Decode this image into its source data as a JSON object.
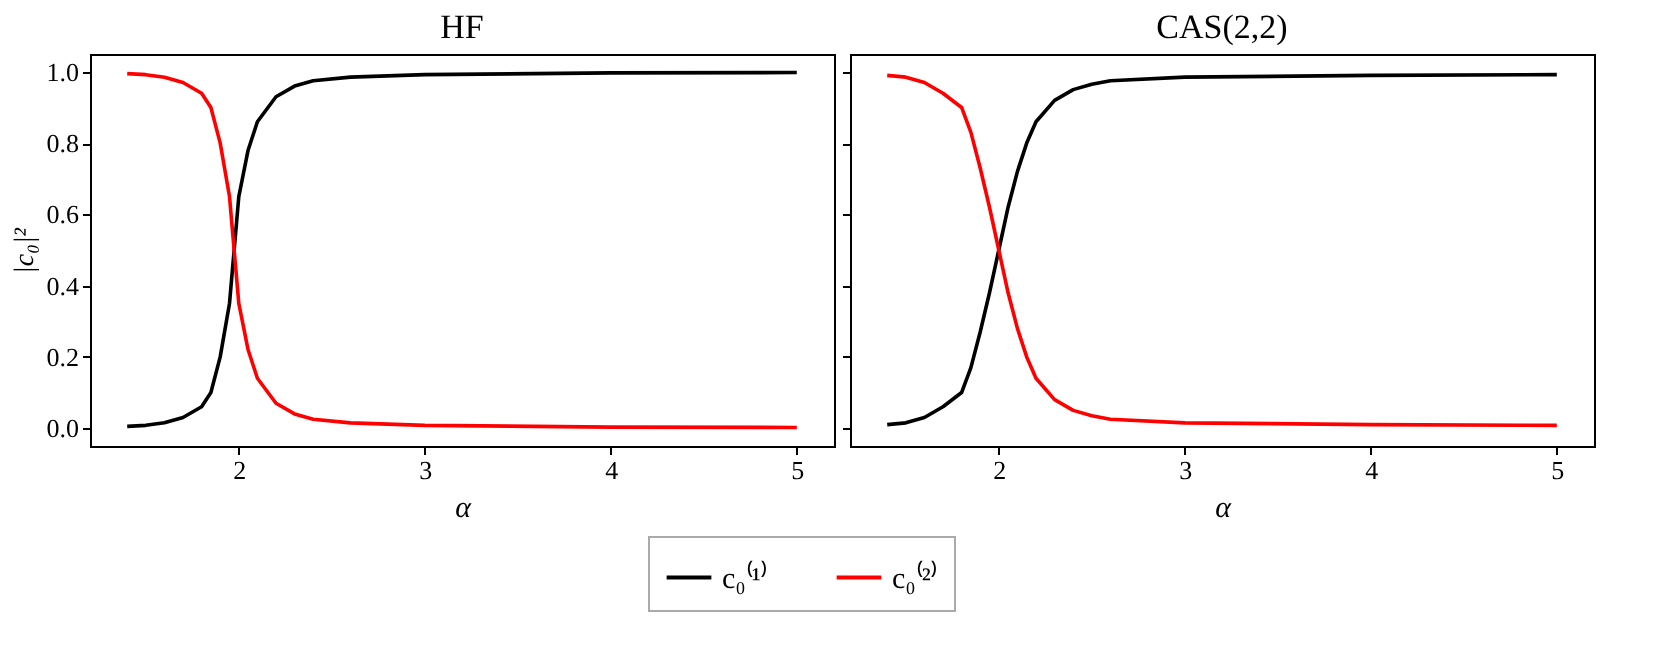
{
  "chart_data": [
    {
      "type": "line",
      "title": "HF",
      "xlabel": "α",
      "ylabel": "|c₀|²",
      "legend": "bottom",
      "grid": false,
      "xlim": [
        1.2,
        5.2
      ],
      "xticks": [
        2,
        3,
        4,
        5
      ],
      "ylim": [
        -0.05,
        1.05
      ],
      "yticks": [
        {
          "value": 0,
          "label": "0.0"
        },
        {
          "value": 0.2,
          "label": "0.2"
        },
        {
          "value": 0.4,
          "label": "0.4"
        },
        {
          "value": 0.6,
          "label": "0.6"
        },
        {
          "value": 0.8,
          "label": "0.8"
        },
        {
          "value": 1,
          "label": "1.0"
        }
      ],
      "x": [
        1.4,
        1.5,
        1.6,
        1.7,
        1.8,
        1.85,
        1.9,
        1.95,
        2.0,
        2.05,
        2.1,
        2.2,
        2.3,
        2.4,
        2.6,
        3.0,
        4.0,
        5.0
      ],
      "series": [
        {
          "name": "c₀⁽¹⁾",
          "color": "#000000",
          "values": [
            0.005,
            0.008,
            0.015,
            0.03,
            0.06,
            0.1,
            0.2,
            0.35,
            0.65,
            0.78,
            0.86,
            0.93,
            0.96,
            0.975,
            0.985,
            0.992,
            0.997,
            0.998
          ]
        },
        {
          "name": "c₀⁽²⁾",
          "color": "#ff0000",
          "values": [
            0.995,
            0.992,
            0.985,
            0.97,
            0.94,
            0.9,
            0.8,
            0.65,
            0.35,
            0.22,
            0.14,
            0.07,
            0.04,
            0.025,
            0.015,
            0.008,
            0.003,
            0.002
          ]
        }
      ]
    },
    {
      "type": "line",
      "title": "CAS(2,2)",
      "xlabel": "α",
      "legend": "bottom",
      "grid": false,
      "tick_labels": "x",
      "xlim": [
        1.2,
        5.2
      ],
      "xticks": [
        2,
        3,
        4,
        5
      ],
      "ylim": [
        -0.05,
        1.05
      ],
      "yticks": [
        {
          "value": 0,
          "label": null
        },
        {
          "value": 0.2,
          "label": null
        },
        {
          "value": 0.4,
          "label": null
        },
        {
          "value": 0.6,
          "label": null
        },
        {
          "value": 0.8,
          "label": null
        },
        {
          "value": 1,
          "label": null
        }
      ],
      "x": [
        1.4,
        1.5,
        1.6,
        1.7,
        1.8,
        1.85,
        1.9,
        1.95,
        2.0,
        2.05,
        2.1,
        2.15,
        2.2,
        2.3,
        2.4,
        2.5,
        2.6,
        3.0,
        4.0,
        5.0
      ],
      "series": [
        {
          "name": "c₀⁽¹⁾",
          "color": "#000000",
          "values": [
            0.01,
            0.015,
            0.03,
            0.06,
            0.1,
            0.17,
            0.27,
            0.38,
            0.5,
            0.62,
            0.72,
            0.8,
            0.86,
            0.92,
            0.95,
            0.965,
            0.975,
            0.985,
            0.99,
            0.992
          ]
        },
        {
          "name": "c₀⁽²⁾",
          "color": "#ff0000",
          "values": [
            0.99,
            0.985,
            0.97,
            0.94,
            0.9,
            0.83,
            0.73,
            0.62,
            0.5,
            0.38,
            0.28,
            0.2,
            0.14,
            0.08,
            0.05,
            0.035,
            0.025,
            0.015,
            0.01,
            0.008
          ]
        }
      ]
    }
  ]
}
